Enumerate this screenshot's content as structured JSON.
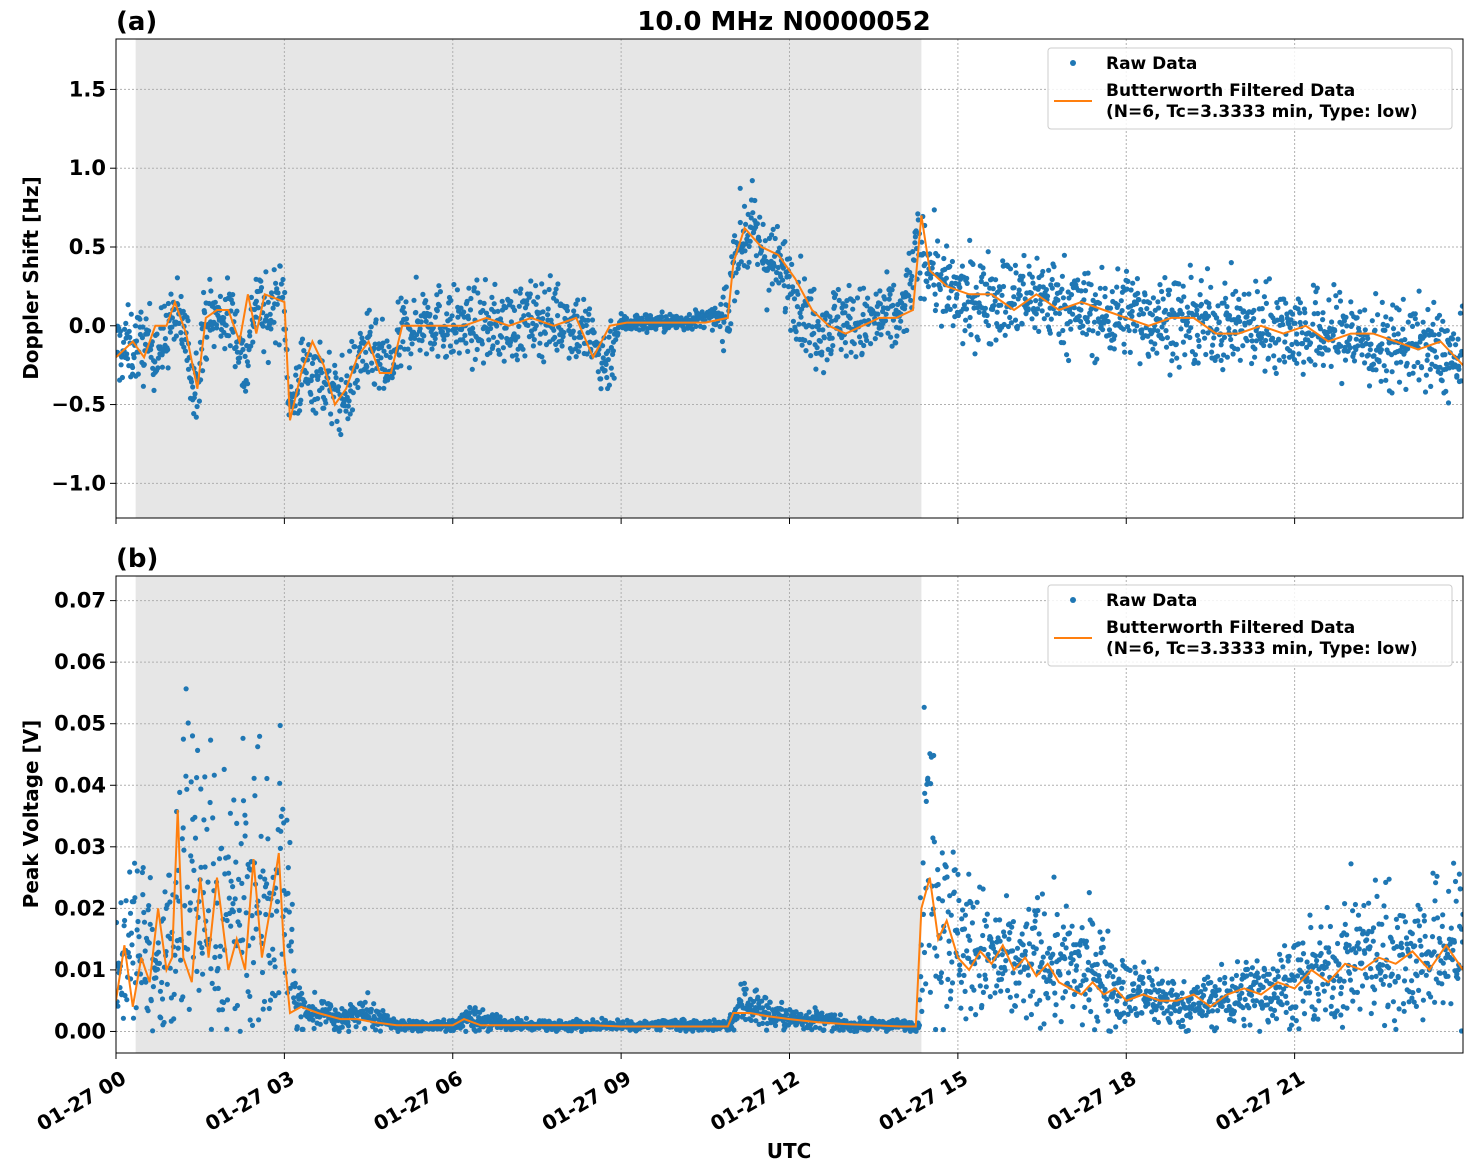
{
  "figure": {
    "title": "10.0 MHz N0000052",
    "xlabel": "UTC"
  },
  "colors": {
    "raw": "#1f77b4",
    "filtered": "#ff7f0e",
    "night_shade": "#e6e6e6",
    "grid": "#b0b0b0"
  },
  "chart_data": [
    {
      "panel_label": "(a)",
      "type": "scatter",
      "ylabel": "Doppler Shift [Hz]",
      "xlim": [
        0,
        24
      ],
      "ylim": [
        -1.22,
        1.82
      ],
      "yticks": [
        -1.0,
        -0.5,
        0.0,
        0.5,
        1.0,
        1.5
      ],
      "yticklabels": [
        "−1.0",
        "−0.5",
        "0.0",
        "0.5",
        "1.0",
        "1.5"
      ],
      "grid": true,
      "shaded_xrange": [
        0.35,
        14.35
      ],
      "legend": {
        "position": "top-right",
        "entries": [
          {
            "label": "Raw Data",
            "style": "marker"
          },
          {
            "label": "Butterworth Filtered Data",
            "label2": "(N=6, Tc=3.3333 min, Type: low)",
            "style": "line"
          }
        ]
      },
      "series": [
        {
          "name": "Raw Data",
          "style": "scatter",
          "x": [
            0,
            0.5,
            0.8,
            1.0,
            1.2,
            1.4,
            1.6,
            1.9,
            2.1,
            2.3,
            2.5,
            2.7,
            2.85,
            3.0,
            3.1,
            3.3,
            3.6,
            3.9,
            4.1,
            4.4,
            4.6,
            4.9,
            5.1,
            5.5,
            6.0,
            6.5,
            7.0,
            7.5,
            8.0,
            8.4,
            8.7,
            9.0,
            9.5,
            10.0,
            10.5,
            10.9,
            11.0,
            11.3,
            11.6,
            12.0,
            12.3,
            12.6,
            12.9,
            13.3,
            13.6,
            14.0,
            14.3,
            14.5,
            14.8,
            15.2,
            15.6,
            16.0,
            16.4,
            16.8,
            17.2,
            17.6,
            18.0,
            18.4,
            18.8,
            19.2,
            19.6,
            20.0,
            20.4,
            20.8,
            21.2,
            21.6,
            22.0,
            22.5,
            23.0,
            23.5,
            24.0
          ],
          "y": [
            -0.15,
            -0.12,
            -0.15,
            0.05,
            0.0,
            -0.4,
            0.05,
            0.05,
            0.05,
            -0.3,
            0.2,
            0.0,
            0.2,
            0.15,
            -0.55,
            -0.3,
            -0.3,
            -0.45,
            -0.45,
            -0.15,
            -0.2,
            -0.3,
            -0.05,
            0.05,
            0.0,
            0.0,
            0.0,
            0.05,
            0.05,
            -0.05,
            -0.25,
            0.02,
            0.02,
            0.02,
            0.05,
            0.05,
            0.45,
            0.62,
            0.42,
            0.3,
            0.05,
            -0.02,
            0.05,
            0.0,
            0.05,
            0.05,
            0.5,
            0.4,
            0.2,
            0.15,
            0.2,
            0.15,
            0.2,
            0.15,
            0.1,
            0.05,
            0.1,
            0.05,
            0.05,
            0.0,
            0.02,
            0.0,
            0.0,
            0.0,
            -0.05,
            -0.05,
            -0.05,
            -0.15,
            -0.1,
            -0.15,
            -0.25
          ]
        },
        {
          "name": "Butterworth Filtered Data",
          "style": "line",
          "x": [
            0,
            0.3,
            0.5,
            0.7,
            0.9,
            1.05,
            1.25,
            1.45,
            1.6,
            1.8,
            2.0,
            2.2,
            2.35,
            2.5,
            2.65,
            2.8,
            3.0,
            3.1,
            3.3,
            3.5,
            3.7,
            3.9,
            4.1,
            4.3,
            4.5,
            4.7,
            4.9,
            5.1,
            5.4,
            5.8,
            6.2,
            6.6,
            7.0,
            7.4,
            7.8,
            8.2,
            8.5,
            8.8,
            9.1,
            9.5,
            10.0,
            10.5,
            10.9,
            11.0,
            11.2,
            11.5,
            11.8,
            12.1,
            12.4,
            12.7,
            13.0,
            13.3,
            13.6,
            13.9,
            14.2,
            14.35,
            14.5,
            14.8,
            15.2,
            15.6,
            16.0,
            16.4,
            16.8,
            17.2,
            17.6,
            18.0,
            18.4,
            18.8,
            19.2,
            19.6,
            20.0,
            20.4,
            20.8,
            21.2,
            21.6,
            22.0,
            22.4,
            22.8,
            23.2,
            23.6,
            24.0
          ],
          "y": [
            -0.2,
            -0.1,
            -0.2,
            0.0,
            0.0,
            0.15,
            -0.05,
            -0.4,
            0.05,
            0.1,
            0.1,
            -0.1,
            0.2,
            -0.05,
            0.2,
            0.18,
            0.15,
            -0.6,
            -0.3,
            -0.1,
            -0.25,
            -0.5,
            -0.4,
            -0.2,
            -0.1,
            -0.3,
            -0.3,
            0.0,
            0.0,
            0.0,
            0.0,
            0.05,
            0.0,
            0.05,
            0.0,
            0.05,
            -0.2,
            0.0,
            0.02,
            0.02,
            0.02,
            0.02,
            0.05,
            0.4,
            0.62,
            0.5,
            0.45,
            0.3,
            0.1,
            0.0,
            -0.05,
            0.0,
            0.05,
            0.05,
            0.1,
            0.7,
            0.35,
            0.25,
            0.2,
            0.2,
            0.1,
            0.2,
            0.1,
            0.15,
            0.1,
            0.05,
            0.0,
            0.05,
            0.05,
            -0.05,
            -0.05,
            0.0,
            -0.05,
            0.0,
            -0.1,
            -0.05,
            -0.05,
            -0.1,
            -0.15,
            -0.1,
            -0.25
          ]
        }
      ]
    },
    {
      "panel_label": "(b)",
      "type": "scatter",
      "ylabel": "Peak Voltage [V]",
      "xlim": [
        0,
        24
      ],
      "ylim": [
        -0.0035,
        0.074
      ],
      "yticks": [
        0.0,
        0.01,
        0.02,
        0.03,
        0.04,
        0.05,
        0.06,
        0.07
      ],
      "yticklabels": [
        "0.00",
        "0.01",
        "0.02",
        "0.03",
        "0.04",
        "0.05",
        "0.06",
        "0.07"
      ],
      "xticks": [
        0,
        3,
        6,
        9,
        12,
        15,
        18,
        21
      ],
      "xticklabels": [
        "01-27 00",
        "01-27 03",
        "01-27 06",
        "01-27 09",
        "01-27 12",
        "01-27 15",
        "01-27 18",
        "01-27 21"
      ],
      "grid": true,
      "shaded_xrange": [
        0.35,
        14.35
      ],
      "legend": {
        "position": "top-right",
        "entries": [
          {
            "label": "Raw Data",
            "style": "marker"
          },
          {
            "label": "Butterworth Filtered Data",
            "label2": "(N=6, Tc=3.3333 min, Type: low)",
            "style": "line"
          }
        ]
      },
      "series": [
        {
          "name": "Raw Data",
          "style": "scatter",
          "x": [
            0,
            0.4,
            0.8,
            1.1,
            1.3,
            1.6,
            1.9,
            2.2,
            2.5,
            2.8,
            3.0,
            3.2,
            3.6,
            4.0,
            4.4,
            5.0,
            5.5,
            6.0,
            6.3,
            7.0,
            8.0,
            9.0,
            10.0,
            10.9,
            11.2,
            11.6,
            12.0,
            12.5,
            13.0,
            13.5,
            14.0,
            14.3,
            14.4,
            14.6,
            15.0,
            15.5,
            16.0,
            16.5,
            17.0,
            17.5,
            18.0,
            18.5,
            19.0,
            19.5,
            20.0,
            20.5,
            21.0,
            21.5,
            22.0,
            22.5,
            23.0,
            23.5,
            24.0
          ],
          "y": [
            0.012,
            0.015,
            0.01,
            0.02,
            0.03,
            0.022,
            0.018,
            0.02,
            0.025,
            0.02,
            0.03,
            0.004,
            0.003,
            0.002,
            0.003,
            0.001,
            0.001,
            0.001,
            0.002,
            0.001,
            0.001,
            0.001,
            0.001,
            0.001,
            0.005,
            0.003,
            0.002,
            0.002,
            0.001,
            0.001,
            0.001,
            0.001,
            0.03,
            0.025,
            0.015,
            0.012,
            0.01,
            0.012,
            0.01,
            0.01,
            0.006,
            0.006,
            0.004,
            0.005,
            0.006,
            0.007,
            0.008,
            0.009,
            0.012,
            0.013,
            0.012,
            0.013,
            0.014
          ]
        },
        {
          "name": "Butterworth Filtered Data",
          "style": "line",
          "x": [
            0,
            0.15,
            0.3,
            0.45,
            0.6,
            0.75,
            0.9,
            1.0,
            1.1,
            1.2,
            1.35,
            1.5,
            1.65,
            1.8,
            2.0,
            2.15,
            2.3,
            2.45,
            2.6,
            2.75,
            2.9,
            3.0,
            3.1,
            3.3,
            3.6,
            4.0,
            4.3,
            4.6,
            5.0,
            5.5,
            6.0,
            6.2,
            6.5,
            7.0,
            7.5,
            8.0,
            8.5,
            9.0,
            9.5,
            10.0,
            10.5,
            10.9,
            11.0,
            11.3,
            11.6,
            12.0,
            12.5,
            13.0,
            13.5,
            14.0,
            14.25,
            14.35,
            14.5,
            14.65,
            14.8,
            15.0,
            15.2,
            15.4,
            15.6,
            15.8,
            16.0,
            16.2,
            16.4,
            16.6,
            16.8,
            17.0,
            17.2,
            17.4,
            17.6,
            17.8,
            18.0,
            18.3,
            18.6,
            18.9,
            19.2,
            19.5,
            19.8,
            20.1,
            20.4,
            20.7,
            21.0,
            21.3,
            21.6,
            21.9,
            22.2,
            22.5,
            22.8,
            23.1,
            23.4,
            23.7,
            24.0
          ],
          "y": [
            0.005,
            0.014,
            0.004,
            0.012,
            0.008,
            0.02,
            0.01,
            0.012,
            0.036,
            0.012,
            0.008,
            0.025,
            0.012,
            0.025,
            0.01,
            0.015,
            0.01,
            0.028,
            0.012,
            0.02,
            0.029,
            0.012,
            0.003,
            0.004,
            0.003,
            0.002,
            0.002,
            0.0015,
            0.001,
            0.001,
            0.001,
            0.002,
            0.001,
            0.001,
            0.001,
            0.001,
            0.001,
            0.0008,
            0.0008,
            0.0008,
            0.0008,
            0.0008,
            0.003,
            0.003,
            0.0025,
            0.002,
            0.0015,
            0.0012,
            0.001,
            0.0008,
            0.0008,
            0.02,
            0.025,
            0.015,
            0.018,
            0.012,
            0.01,
            0.013,
            0.011,
            0.014,
            0.01,
            0.012,
            0.009,
            0.011,
            0.008,
            0.007,
            0.006,
            0.008,
            0.006,
            0.007,
            0.005,
            0.006,
            0.005,
            0.005,
            0.006,
            0.004,
            0.006,
            0.007,
            0.006,
            0.008,
            0.007,
            0.01,
            0.008,
            0.011,
            0.01,
            0.012,
            0.011,
            0.013,
            0.01,
            0.014,
            0.01
          ]
        }
      ]
    }
  ]
}
